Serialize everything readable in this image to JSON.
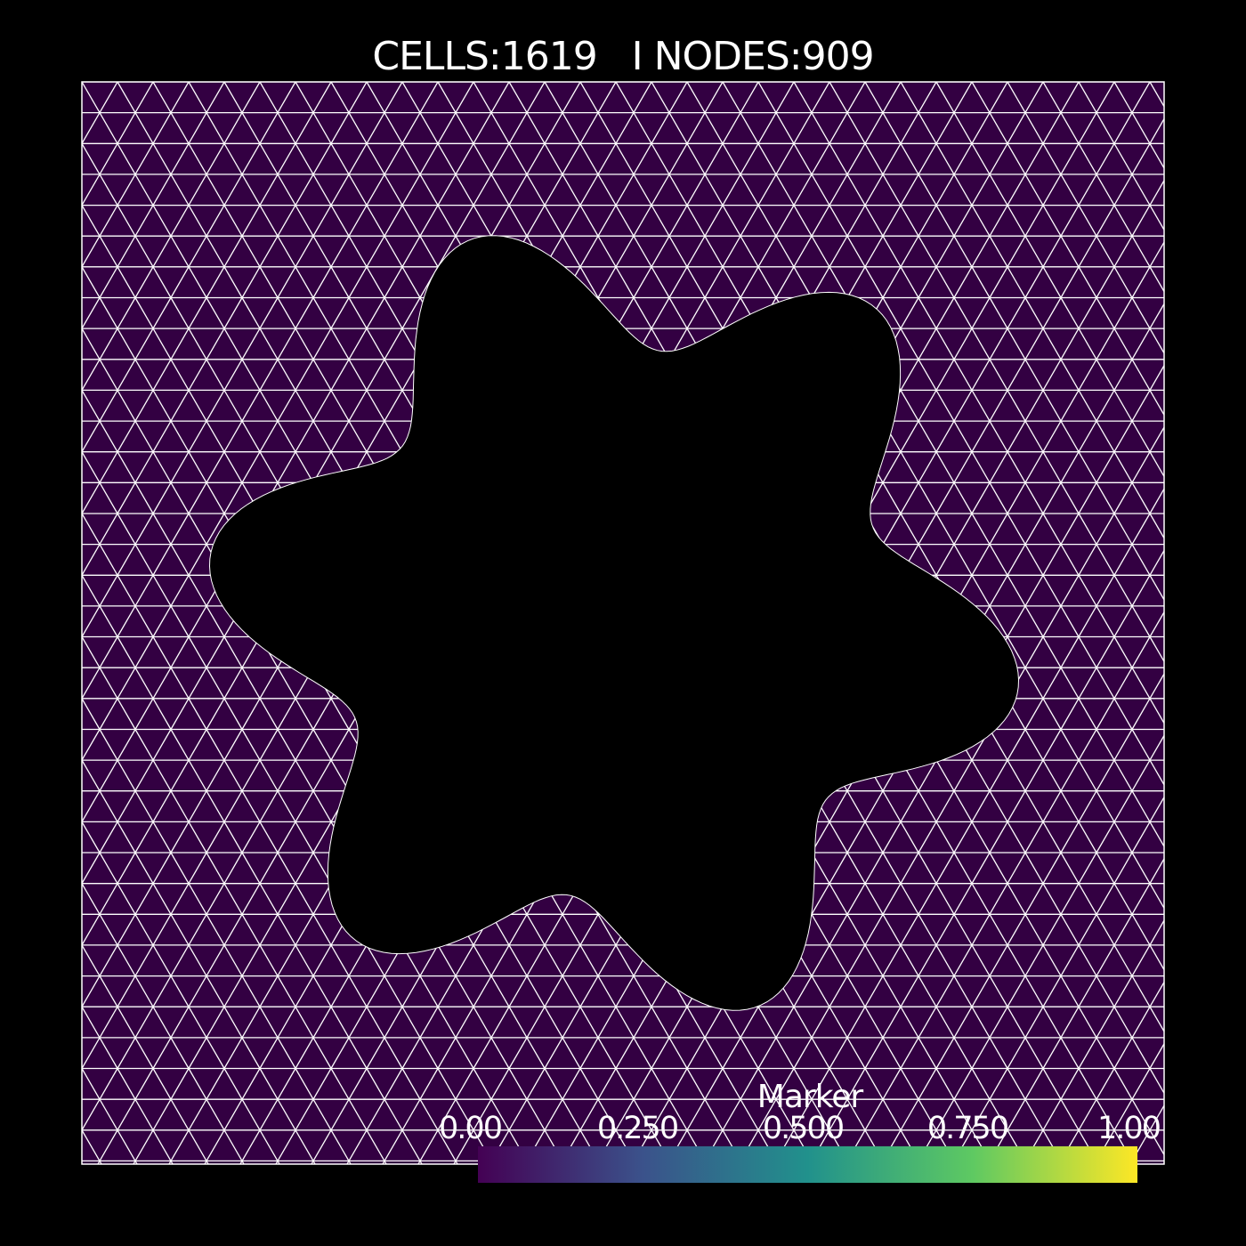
{
  "title": "CELLS:1619   I NODES:909",
  "colorbar": {
    "title": "Marker",
    "ticks": [
      "0.00",
      "0.250",
      "0.500",
      "0.750",
      "1.00"
    ],
    "colormap": [
      "#440154",
      "#3b528b",
      "#21918c",
      "#5ec962",
      "#fde725"
    ]
  },
  "mesh": {
    "cells": 1619,
    "nodes": 909,
    "fill_color": "#330042",
    "edge_color": "#ffffff",
    "hole_color": "#000000"
  }
}
